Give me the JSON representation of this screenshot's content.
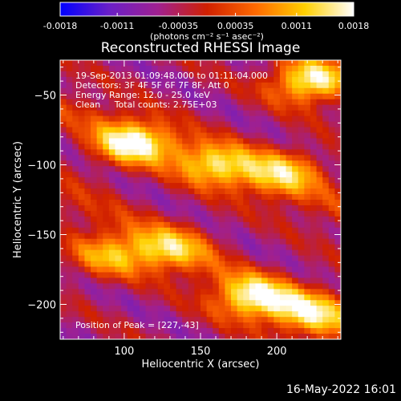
{
  "title": "Reconstructed RHESSI Image",
  "footer_date": "16-May-2022 16:01",
  "annotations": {
    "time": "19-Sep-2013 01:09:48.000 to 01:11:04.000",
    "detectors": "Detectors: 3F 4F 5F 6F 7F 8F, Att 0",
    "energy": "Energy Range: 12.0 - 25.0 keV",
    "clean": "Clean     Total counts: 2.75E+03",
    "peak": "Position of Peak = [227,-43]"
  },
  "colorbar": {
    "tick_labels": [
      "-0.0018",
      "-0.0011",
      "-0.00035",
      "0.00035",
      "0.0011",
      "0.0018"
    ],
    "tick_values": [
      -0.0018,
      -0.0011,
      -0.00035,
      0.00035,
      0.0011,
      0.0018
    ],
    "unit_label": "(photons cm⁻² s⁻¹ asec⁻²)",
    "colors": [
      "#0000ff",
      "#6a1fc8",
      "#a02090",
      "#d02000",
      "#ff6a00",
      "#ffd000",
      "#ffffff"
    ]
  },
  "chart_data": {
    "type": "heatmap",
    "title": "Reconstructed RHESSI Image",
    "xlabel": "Heliocentric X (arcsec)",
    "ylabel": "Heliocentric Y (arcsec)",
    "xlim": [
      58,
      242
    ],
    "ylim": [
      -225,
      -25
    ],
    "x_ticks": [
      100,
      150,
      200
    ],
    "y_ticks": [
      -200,
      -150,
      -100,
      -50
    ],
    "x_tick_labels": [
      "100",
      "150",
      "200"
    ],
    "y_tick_labels": [
      "−200",
      "−150",
      "−100",
      "−50"
    ],
    "value_range": [
      -0.0018,
      0.0018
    ],
    "colormap": "blue-purple-red-yellow-white",
    "peak": [
      227,
      -43
    ],
    "bright_sources": [
      {
        "x": 222,
        "y": -40,
        "peak": 0.0018
      },
      {
        "x": 105,
        "y": -85,
        "peak": 0.0016
      },
      {
        "x": 160,
        "y": -100,
        "peak": 0.0011
      },
      {
        "x": 205,
        "y": -105,
        "peak": 0.0011
      },
      {
        "x": 90,
        "y": -165,
        "peak": 0.0009
      },
      {
        "x": 130,
        "y": -160,
        "peak": 0.001
      },
      {
        "x": 185,
        "y": -195,
        "peak": 0.0015
      },
      {
        "x": 225,
        "y": -205,
        "peak": 0.0012
      }
    ]
  }
}
